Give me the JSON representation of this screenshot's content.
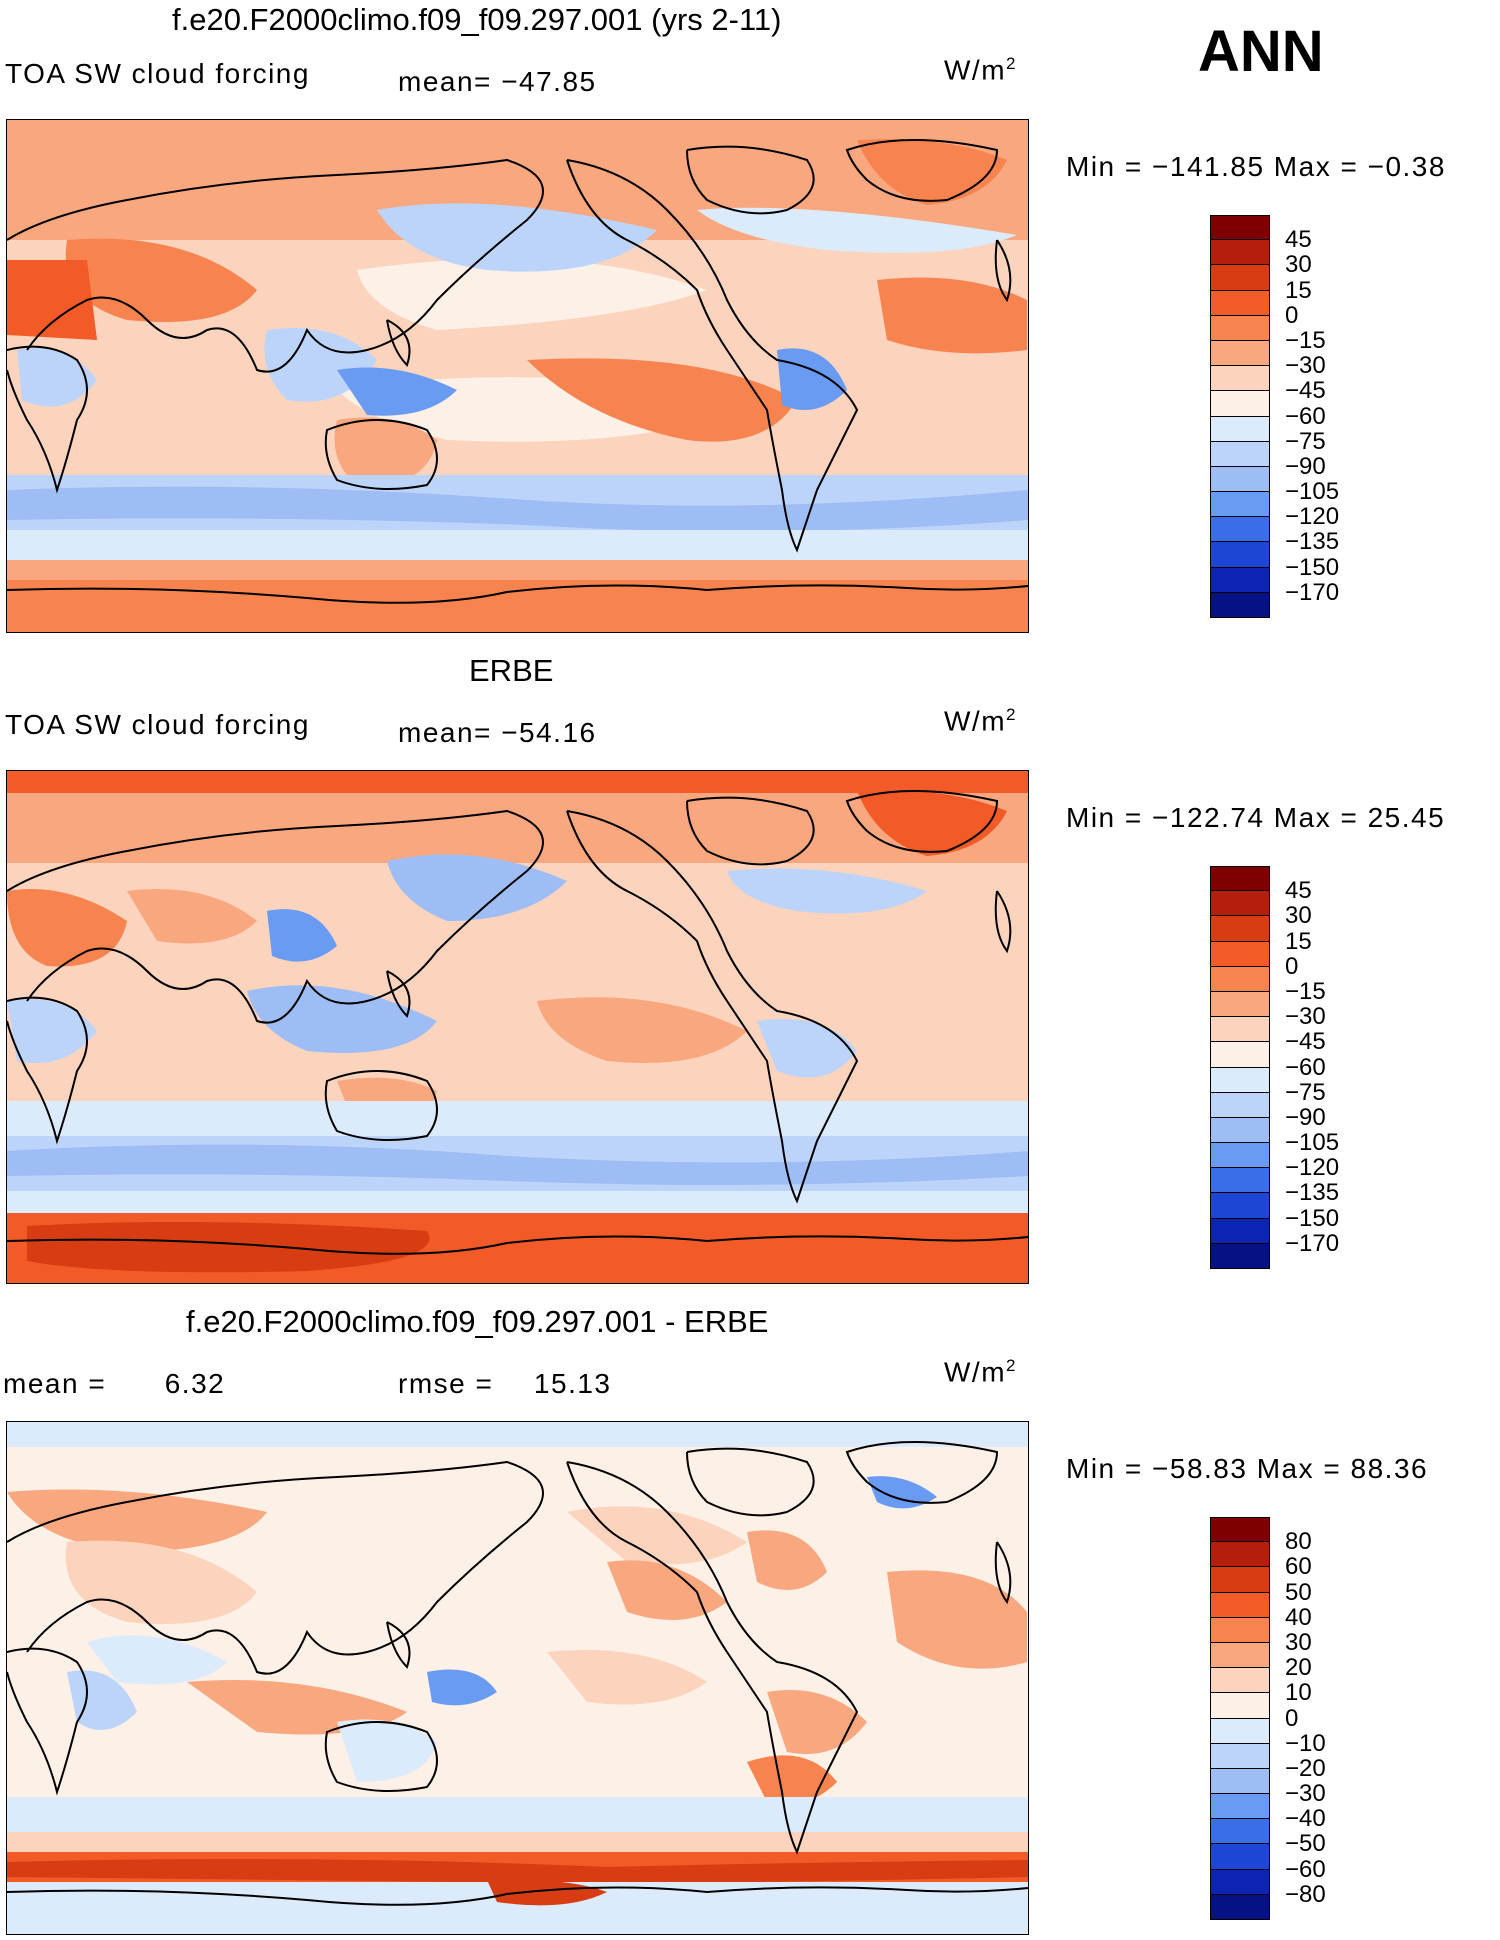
{
  "season": "ANN",
  "panels": [
    {
      "title": "f.e20.F2000climo.f09_f09.297.001 (yrs 2-11)",
      "variable": "TOA SW cloud forcing",
      "stat1_label": "mean=",
      "stat1_value": "−47.85",
      "stat2_label": "",
      "stat2_value": "",
      "units_base": "W/m",
      "units_exp": "2",
      "min_max": "Min = −141.85 Max =  −0.38",
      "colorbar": {
        "levels": [
          "45",
          "30",
          "15",
          "0",
          "−15",
          "−30",
          "−45",
          "−60",
          "−75",
          "−90",
          "−105",
          "−120",
          "−135",
          "−150",
          "−170"
        ],
        "colors": [
          "#7f0000",
          "#b41e0a",
          "#d83c12",
          "#f25a28",
          "#f7844f",
          "#f9a77f",
          "#fcd3bd",
          "#fdf0e6",
          "#dcebfc",
          "#bcd4fa",
          "#9ebdf5",
          "#6a9bf2",
          "#3a6ee8",
          "#1f45d6",
          "#0b24b2",
          "#061184"
        ]
      }
    },
    {
      "title": "ERBE",
      "variable": "TOA SW cloud forcing",
      "stat1_label": "mean=",
      "stat1_value": "−54.16",
      "stat2_label": "",
      "stat2_value": "",
      "units_base": "W/m",
      "units_exp": "2",
      "min_max": "Min = −122.74 Max =   25.45",
      "colorbar": {
        "levels": [
          "45",
          "30",
          "15",
          "0",
          "−15",
          "−30",
          "−45",
          "−60",
          "−75",
          "−90",
          "−105",
          "−120",
          "−135",
          "−150",
          "−170"
        ],
        "colors": [
          "#7f0000",
          "#b41e0a",
          "#d83c12",
          "#f25a28",
          "#f7844f",
          "#f9a77f",
          "#fcd3bd",
          "#fdf0e6",
          "#dcebfc",
          "#bcd4fa",
          "#9ebdf5",
          "#6a9bf2",
          "#3a6ee8",
          "#1f45d6",
          "#0b24b2",
          "#061184"
        ]
      }
    },
    {
      "title": "f.e20.F2000climo.f09_f09.297.001 - ERBE",
      "variable": "",
      "stat1_label": "mean =",
      "stat1_value": "6.32",
      "stat2_label": "rmse =",
      "stat2_value": "15.13",
      "units_base": "W/m",
      "units_exp": "2",
      "min_max": "Min = −58.83 Max =   88.36",
      "colorbar": {
        "levels": [
          "80",
          "60",
          "50",
          "40",
          "30",
          "20",
          "10",
          "0",
          "−10",
          "−20",
          "−30",
          "−40",
          "−50",
          "−60",
          "−80"
        ],
        "colors": [
          "#7f0000",
          "#b41e0a",
          "#d83c12",
          "#f25a28",
          "#f7844f",
          "#f9a77f",
          "#fcd3bd",
          "#fdf0e6",
          "#dcebfc",
          "#bcd4fa",
          "#9ebdf5",
          "#6a9bf2",
          "#3a6ee8",
          "#1f45d6",
          "#0b24b2",
          "#061184"
        ]
      }
    }
  ]
}
